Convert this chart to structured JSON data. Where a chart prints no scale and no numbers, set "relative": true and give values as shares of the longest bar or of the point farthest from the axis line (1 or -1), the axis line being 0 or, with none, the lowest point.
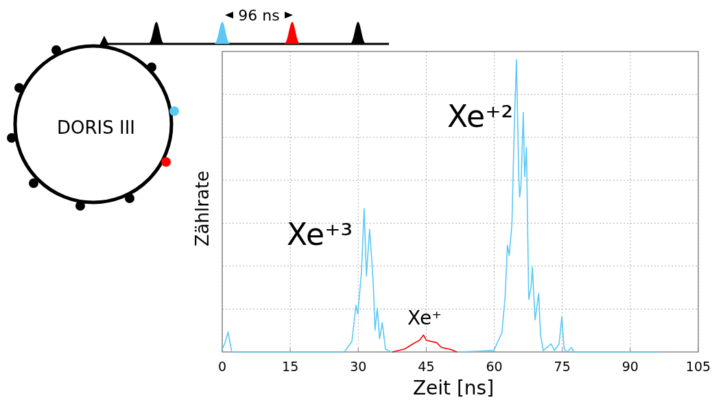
{
  "chart_data": {
    "type": "line",
    "relative": true,
    "xlabel": "Zeit [ns]",
    "ylabel": "Zählrate",
    "xlim": [
      0,
      105
    ],
    "xticks": [
      0,
      15,
      30,
      45,
      60,
      75,
      90,
      105
    ],
    "grid": true,
    "marker": "none",
    "line_style": "solid",
    "annotations": [
      "Xe⁺³",
      "Xe⁺²",
      "Xe⁺",
      "DORIS III",
      "96 ns"
    ],
    "series": [
      {
        "color": "#5bc8f5",
        "x": [
          0,
          0.6,
          1.3,
          2.1,
          10,
          20,
          26.9,
          28.6,
          29.5,
          29.9,
          30.7,
          31.3,
          31.8,
          32.5,
          33.1,
          33.4,
          33.7,
          34.2,
          34.7,
          35.3,
          36.0,
          37.2,
          null,
          52.6,
          59.9,
          61.7,
          62.4,
          62.9,
          63.3,
          63.9,
          64.4,
          64.9,
          65.4,
          65.6,
          65.9,
          66.4,
          66.7,
          67.1,
          67.6,
          68.1,
          68.4,
          69.0,
          69.8,
          70.2,
          70.8,
          72.0,
          72.5,
          73.3,
          74.3,
          74.9,
          75.4,
          76.0,
          77.0,
          77.6,
          85,
          96.2
        ],
        "values": [
          0.01,
          0.03,
          0.068,
          0,
          0,
          0,
          0,
          0.036,
          0.16,
          0.13,
          0.27,
          0.49,
          0.26,
          0.42,
          0.29,
          0.2,
          0.075,
          0.15,
          0.045,
          0.1,
          0.01,
          0,
          null,
          0,
          0.005,
          0.067,
          0.19,
          0.365,
          0.33,
          0.44,
          0.76,
          1,
          0.6,
          0.53,
          0.57,
          0.82,
          0.6,
          0.7,
          0.18,
          0.22,
          0.29,
          0.11,
          0.2,
          0.06,
          0.005,
          0.02,
          0.028,
          0.005,
          0.028,
          0.12,
          0.012,
          0,
          0.015,
          0,
          0,
          0
        ]
      },
      {
        "color": "#ff0000",
        "x": [
          37.5,
          40.2,
          42.3,
          43.5,
          44.4,
          45.0,
          47.3,
          48.3,
          49.3,
          50.1,
          51.8
        ],
        "values": [
          0,
          0.01,
          0.03,
          0.04,
          0.058,
          0.04,
          0.032,
          0.016,
          0.012,
          0.01,
          0
        ]
      }
    ]
  }
}
